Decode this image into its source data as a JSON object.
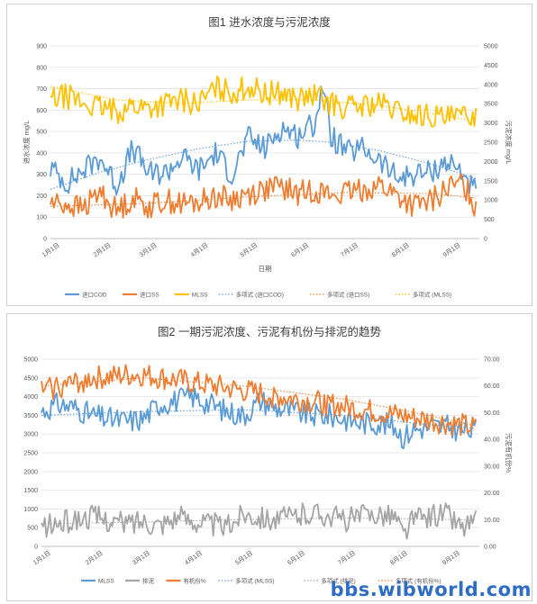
{
  "watermark": "bbs.wibworld.com",
  "colors": {
    "blue": "#5b9bd5",
    "orange": "#ed7d31",
    "yellow": "#ffc000",
    "gray": "#a5a5a5",
    "grid": "#e3e3e3",
    "axis": "#bfbfbf"
  },
  "chart_data": [
    {
      "type": "line",
      "title": "图1 进水浓度与污泥浓度",
      "xlabel": "日期",
      "ylabel_left": "进水浓度 mg/L",
      "ylabel_right": "污泥浓度 mg/L",
      "x_range_days": [
        0,
        260
      ],
      "x_ticks": [
        {
          "label": "1月1日",
          "day": 0
        },
        {
          "label": "2月1日",
          "day": 31
        },
        {
          "label": "3月1日",
          "day": 59
        },
        {
          "label": "4月1日",
          "day": 90
        },
        {
          "label": "5月1日",
          "day": 120
        },
        {
          "label": "6月1日",
          "day": 151
        },
        {
          "label": "7月1日",
          "day": 181
        },
        {
          "label": "8月1日",
          "day": 212
        },
        {
          "label": "9月1日",
          "day": 243
        }
      ],
      "ylim_left": [
        0,
        900
      ],
      "yticks_left": [
        0,
        100,
        200,
        300,
        400,
        500,
        600,
        700,
        800,
        900
      ],
      "ylim_right": [
        0,
        5000
      ],
      "yticks_right": [
        0,
        500,
        1000,
        1500,
        2000,
        2500,
        3000,
        3500,
        4000,
        4500,
        5000
      ],
      "grid": true,
      "legend_position": "bottom",
      "series": [
        {
          "name": "进口COD",
          "color": "#5b9bd5",
          "axis": "left",
          "style": "solid",
          "days": [
            0,
            10,
            20,
            30,
            40,
            50,
            60,
            70,
            80,
            90,
            100,
            110,
            120,
            130,
            140,
            150,
            160,
            165,
            170,
            180,
            190,
            200,
            210,
            220,
            230,
            240,
            250,
            258
          ],
          "values": [
            330,
            260,
            320,
            380,
            250,
            420,
            300,
            310,
            380,
            320,
            400,
            300,
            470,
            420,
            520,
            480,
            540,
            720,
            480,
            400,
            420,
            360,
            280,
            300,
            310,
            360,
            310,
            210
          ]
        },
        {
          "name": "进口SS",
          "color": "#ed7d31",
          "axis": "left",
          "style": "solid",
          "days": [
            0,
            10,
            20,
            30,
            40,
            50,
            60,
            70,
            80,
            90,
            100,
            110,
            120,
            130,
            140,
            150,
            160,
            170,
            180,
            190,
            200,
            210,
            220,
            230,
            240,
            250,
            258
          ],
          "values": [
            170,
            160,
            140,
            220,
            130,
            190,
            150,
            180,
            160,
            170,
            200,
            180,
            210,
            230,
            240,
            210,
            230,
            200,
            210,
            230,
            250,
            200,
            150,
            170,
            230,
            260,
            150
          ]
        },
        {
          "name": "MLSS",
          "color": "#ffc000",
          "axis": "right",
          "style": "solid",
          "days": [
            0,
            10,
            20,
            30,
            40,
            50,
            60,
            70,
            80,
            90,
            100,
            110,
            120,
            130,
            140,
            150,
            160,
            170,
            180,
            190,
            200,
            210,
            220,
            230,
            240,
            250,
            258
          ],
          "values": [
            3600,
            3700,
            3500,
            3400,
            3300,
            3450,
            3400,
            3500,
            3600,
            3500,
            3900,
            3800,
            3950,
            3750,
            3800,
            3600,
            3700,
            3500,
            3400,
            3450,
            3500,
            3300,
            3200,
            3200,
            3100,
            3150,
            3250
          ]
        },
        {
          "name": "多项式 (进口COD)",
          "color": "#5b9bd5",
          "axis": "left",
          "style": "dotted",
          "days": [
            0,
            30,
            60,
            90,
            120,
            150,
            170,
            200,
            230,
            258
          ],
          "values": [
            230,
            310,
            370,
            420,
            455,
            460,
            450,
            410,
            350,
            280
          ]
        },
        {
          "name": "多项式 (进口SS)",
          "color": "#ed7d31",
          "axis": "left",
          "style": "dotted",
          "days": [
            0,
            60,
            120,
            180,
            230,
            258
          ],
          "values": [
            150,
            165,
            195,
            215,
            210,
            190
          ]
        },
        {
          "name": "多项式 (MLSS)",
          "color": "#ffc000",
          "axis": "right",
          "style": "dotted",
          "days": [
            0,
            40,
            80,
            120,
            160,
            200,
            230,
            258
          ],
          "values": [
            3950,
            3600,
            3500,
            3600,
            3600,
            3450,
            3250,
            3050
          ]
        }
      ]
    },
    {
      "type": "line",
      "title": "图2 一期污泥浓度、污泥有机份与排泥的趋势",
      "ylabel_right": "污泥有机份%",
      "x_range_days": [
        0,
        260
      ],
      "x_ticks": [
        {
          "label": "1月1日",
          "day": 0
        },
        {
          "label": "2月1日",
          "day": 31
        },
        {
          "label": "3月1日",
          "day": 59
        },
        {
          "label": "4月1日",
          "day": 90
        },
        {
          "label": "5月1日",
          "day": 120
        },
        {
          "label": "6月1日",
          "day": 151
        },
        {
          "label": "7月1日",
          "day": 181
        },
        {
          "label": "8月1日",
          "day": 212
        },
        {
          "label": "9月1日",
          "day": 243
        }
      ],
      "ylim_left": [
        0,
        5000
      ],
      "yticks_left": [
        0,
        500,
        1000,
        1500,
        2000,
        2500,
        3000,
        3500,
        4000,
        4500,
        5000
      ],
      "ylim_right": [
        0,
        70
      ],
      "yticks_right": [
        "0.00",
        "10.00",
        "20.00",
        "30.00",
        "40.00",
        "50.00",
        "60.00",
        "70.00"
      ],
      "grid": true,
      "legend_position": "bottom",
      "series": [
        {
          "name": "MLSS",
          "color": "#5b9bd5",
          "axis": "left",
          "style": "solid",
          "days": [
            0,
            10,
            20,
            30,
            40,
            50,
            60,
            70,
            80,
            90,
            100,
            110,
            120,
            130,
            140,
            150,
            160,
            170,
            180,
            190,
            200,
            210,
            215,
            220,
            230,
            240,
            250,
            258
          ],
          "values": [
            3600,
            3800,
            3700,
            3500,
            3400,
            3350,
            3400,
            3800,
            3900,
            4000,
            3800,
            3600,
            3500,
            3900,
            3700,
            3600,
            3500,
            3500,
            3400,
            3300,
            3300,
            3200,
            2900,
            3100,
            3200,
            3200,
            3100,
            3100
          ]
        },
        {
          "name": "排泥",
          "color": "#a5a5a5",
          "axis": "left",
          "style": "solid",
          "days": [
            0,
            10,
            20,
            30,
            40,
            50,
            60,
            70,
            80,
            90,
            100,
            110,
            120,
            130,
            140,
            150,
            160,
            170,
            180,
            190,
            200,
            210,
            215,
            220,
            230,
            240,
            250,
            258
          ],
          "values": [
            500,
            600,
            700,
            800,
            700,
            600,
            700,
            600,
            800,
            700,
            600,
            500,
            900,
            800,
            700,
            800,
            900,
            850,
            700,
            800,
            900,
            800,
            300,
            700,
            800,
            900,
            500,
            700
          ]
        },
        {
          "name": "有机份%",
          "color": "#ed7d31",
          "axis": "right",
          "style": "solid",
          "days": [
            0,
            10,
            20,
            30,
            40,
            50,
            60,
            70,
            80,
            90,
            100,
            110,
            120,
            130,
            140,
            150,
            160,
            170,
            180,
            190,
            200,
            210,
            220,
            230,
            240,
            250,
            258
          ],
          "values": [
            58,
            60,
            61,
            63,
            63,
            64,
            64,
            63,
            62,
            61,
            60,
            59,
            58,
            57,
            56,
            55,
            54,
            53,
            52,
            51,
            50,
            49,
            48,
            47,
            46,
            45,
            44
          ]
        },
        {
          "name": "多项式 (MLSS)",
          "color": "#5b9bd5",
          "axis": "left",
          "style": "dotted",
          "days": [
            0,
            60,
            120,
            180,
            230,
            258
          ],
          "values": [
            3500,
            3600,
            3650,
            3500,
            3250,
            3150
          ]
        },
        {
          "name": "多项式 (排泥)",
          "color": "#a5a5a5",
          "axis": "left",
          "style": "dotted",
          "days": [
            0,
            60,
            120,
            180,
            230,
            258
          ],
          "values": [
            600,
            650,
            720,
            760,
            730,
            700
          ]
        },
        {
          "name": "多项式 (有机份%)",
          "color": "#ed7d31",
          "axis": "right",
          "style": "dotted",
          "days": [
            0,
            60,
            120,
            180,
            230,
            258
          ],
          "values": [
            60,
            63,
            60,
            55,
            49,
            45
          ]
        }
      ]
    }
  ]
}
